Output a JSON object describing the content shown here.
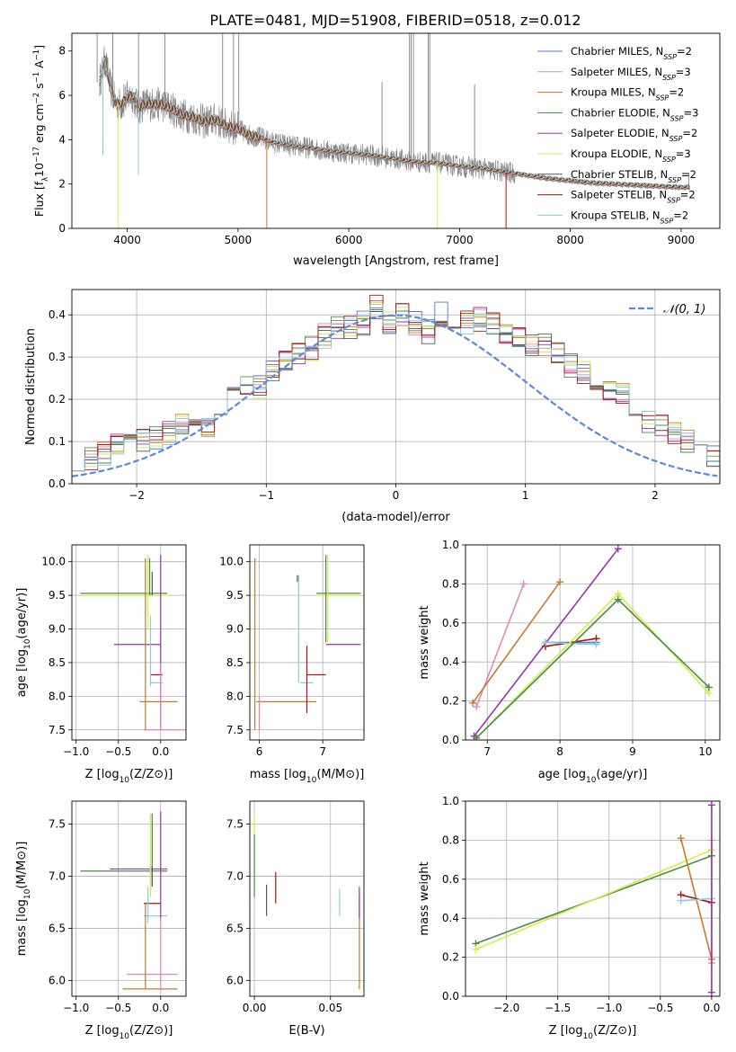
{
  "title": "PLATE=0481, MJD=51908, FIBERID=0518, z=0.012",
  "colors": {
    "chabrier_miles": "#5577cc",
    "salpeter_miles": "#e088b8",
    "kroupa_miles": "#c87828",
    "chabrier_elodie": "#4a8a4a",
    "salpeter_elodie": "#9933aa",
    "kroupa_elodie": "#d4ee44",
    "chabrier_stelib": "#555555",
    "salpeter_stelib": "#aa1111",
    "kroupa_stelib": "#88ccdd",
    "data": "#808080",
    "gauss": "#5b8bd8"
  },
  "chart_data": [
    {
      "id": "spectrum",
      "type": "line",
      "xlabel": "wavelength [Angstrom, rest frame]",
      "ylabel_parts": {
        "main": "Flux [f",
        "sub1": "λ",
        "mid": "10",
        "sup1": "−17",
        "mid2": " erg cm",
        "sup2": "−2",
        "mid3": " s",
        "sup3": "−1",
        "mid4": " A",
        "sup4": "−1",
        "end": "]"
      },
      "xlim": [
        3500,
        9350
      ],
      "ylim": [
        0,
        8.8
      ],
      "xticks": [
        4000,
        5000,
        6000,
        7000,
        8000,
        9000
      ],
      "yticks": [
        0,
        2,
        4,
        6,
        8
      ],
      "legend": [
        {
          "label": "Chabrier MILES, N",
          "sub": "SSP",
          "suffix": "=2",
          "color": "chabrier_miles"
        },
        {
          "label": "Salpeter MILES, N",
          "sub": "SSP",
          "suffix": "=3",
          "color": "salpeter_miles"
        },
        {
          "label": "Kroupa MILES, N",
          "sub": "SSP",
          "suffix": "=2",
          "color": "kroupa_miles"
        },
        {
          "label": "Chabrier ELODIE, N",
          "sub": "SSP",
          "suffix": "=3",
          "color": "chabrier_elodie"
        },
        {
          "label": "Salpeter ELODIE, N",
          "sub": "SSP",
          "suffix": "=2",
          "color": "salpeter_elodie"
        },
        {
          "label": "Kroupa ELODIE, N",
          "sub": "SSP",
          "suffix": "=3",
          "color": "kroupa_elodie"
        },
        {
          "label": "Chabrier STELIB, N",
          "sub": "SSP",
          "suffix": "=2",
          "color": "chabrier_stelib"
        },
        {
          "label": "Salpeter STELIB, N",
          "sub": "SSP",
          "suffix": "=2",
          "color": "salpeter_stelib"
        },
        {
          "label": "Kroupa STELIB, N",
          "sub": "SSP",
          "suffix": "=2",
          "color": "kroupa_stelib"
        }
      ],
      "model_continuum": [
        [
          3750,
          6.6
        ],
        [
          3800,
          7.6
        ],
        [
          3850,
          6.3
        ],
        [
          3900,
          5.6
        ],
        [
          3950,
          5.6
        ],
        [
          4000,
          5.9
        ],
        [
          4050,
          6.0
        ],
        [
          4100,
          5.4
        ],
        [
          4150,
          5.6
        ],
        [
          4200,
          5.6
        ],
        [
          4300,
          5.6
        ],
        [
          4400,
          5.4
        ],
        [
          4500,
          5.1
        ],
        [
          4600,
          5.0
        ],
        [
          4700,
          4.8
        ],
        [
          4800,
          4.9
        ],
        [
          4900,
          4.6
        ],
        [
          5000,
          4.5
        ],
        [
          5100,
          4.2
        ],
        [
          5200,
          4.1
        ],
        [
          5300,
          3.9
        ],
        [
          5400,
          3.8
        ],
        [
          5500,
          3.7
        ],
        [
          5600,
          3.65
        ],
        [
          5700,
          3.6
        ],
        [
          5800,
          3.5
        ],
        [
          5900,
          3.45
        ],
        [
          6000,
          3.4
        ],
        [
          6200,
          3.3
        ],
        [
          6400,
          3.15
        ],
        [
          6600,
          3.0
        ],
        [
          6800,
          2.95
        ],
        [
          7000,
          2.8
        ],
        [
          7200,
          2.7
        ],
        [
          7400,
          2.55
        ],
        [
          7600,
          2.4
        ],
        [
          7800,
          2.25
        ],
        [
          8000,
          2.15
        ],
        [
          8200,
          2.05
        ],
        [
          8400,
          2.0
        ],
        [
          8600,
          1.95
        ],
        [
          8800,
          1.9
        ],
        [
          9000,
          1.85
        ],
        [
          9080,
          1.85
        ]
      ],
      "data_noise_amplitude": 0.5,
      "emission_lines": [
        [
          3728,
          9
        ],
        [
          3869,
          8.8
        ],
        [
          3970,
          6.5
        ],
        [
          4102,
          8.8
        ],
        [
          4340,
          8.8
        ],
        [
          4861,
          8.8
        ],
        [
          4959,
          8.8
        ],
        [
          5007,
          8.8
        ],
        [
          6300,
          6.6
        ],
        [
          6548,
          8.8
        ],
        [
          6563,
          8.8
        ],
        [
          6584,
          8.8
        ],
        [
          6717,
          8.8
        ],
        [
          6731,
          8.8
        ],
        [
          7136,
          6.5
        ],
        [
          9069,
          2.5
        ]
      ],
      "model_drops": [
        [
          3920,
          0,
          "kroupa_elodie"
        ],
        [
          5260,
          0,
          "kroupa_miles"
        ],
        [
          6800,
          0,
          "kroupa_elodie"
        ],
        [
          7420,
          0,
          "salpeter_stelib"
        ],
        [
          3780,
          3.3,
          "kroupa_stelib"
        ],
        [
          4100,
          2.4,
          "kroupa_stelib"
        ]
      ]
    },
    {
      "id": "residual_hist",
      "type": "step",
      "xlabel": "(data-model)/error",
      "ylabel": "Normed distribution",
      "xlim": [
        -2.5,
        2.5
      ],
      "ylim": [
        0,
        0.46
      ],
      "xticks": [
        -2,
        -1,
        0,
        1,
        2
      ],
      "yticks": [
        0,
        0.1,
        0.2,
        0.3,
        0.4
      ],
      "legend": {
        "label": "𝒩(0, 1)",
        "color": "gauss"
      },
      "bin_width": 0.1,
      "bin_start": -2.5,
      "base_values": [
        0.06,
        0.06,
        0.07,
        0.09,
        0.09,
        0.1,
        0.11,
        0.12,
        0.14,
        0.14,
        0.14,
        0.17,
        0.2,
        0.23,
        0.23,
        0.27,
        0.29,
        0.31,
        0.32,
        0.35,
        0.37,
        0.37,
        0.38,
        0.42,
        0.38,
        0.4,
        0.38,
        0.36,
        0.4,
        0.39,
        0.38,
        0.39,
        0.38,
        0.36,
        0.35,
        0.33,
        0.33,
        0.31,
        0.28,
        0.26,
        0.25,
        0.22,
        0.21,
        0.17,
        0.15,
        0.14,
        0.12,
        0.1,
        0.08,
        0.07
      ],
      "series_colors": [
        "chabrier_miles",
        "salpeter_miles",
        "kroupa_miles",
        "chabrier_elodie",
        "salpeter_elodie",
        "kroupa_elodie",
        "chabrier_stelib",
        "salpeter_stelib",
        "kroupa_stelib"
      ]
    },
    {
      "id": "age_vs_Z",
      "type": "errorbar",
      "xlabel": "Z [log10(Z/Z⊙)]",
      "ylabel": "age  [log10(age/yr)]",
      "xlim": [
        -1.05,
        0.3
      ],
      "ylim": [
        7.35,
        10.25
      ],
      "xticks": [
        -1.0,
        -0.5,
        0.0
      ],
      "yticks": [
        7.5,
        8.0,
        8.5,
        9.0,
        9.5,
        10.0
      ],
      "hbars": [
        [
          -0.95,
          0.08,
          9.53,
          "chabrier_elodie"
        ],
        [
          -0.95,
          0.08,
          9.5,
          "kroupa_elodie"
        ],
        [
          -0.55,
          0.0,
          8.77,
          "salpeter_elodie"
        ],
        [
          -0.25,
          0.2,
          7.92,
          "kroupa_miles"
        ],
        [
          -0.12,
          0.02,
          8.32,
          "salpeter_stelib"
        ],
        [
          -0.12,
          0.02,
          8.2,
          "kroupa_stelib"
        ],
        [
          -0.2,
          0.3,
          7.5,
          "salpeter_miles"
        ]
      ],
      "vbars": [
        [
          -0.1,
          9.5,
          9.85,
          "chabrier_stelib"
        ],
        [
          -0.15,
          9.0,
          10.1,
          "kroupa_elodie"
        ],
        [
          -0.13,
          9.5,
          10.05,
          "chabrier_elodie"
        ],
        [
          0.0,
          7.5,
          10.1,
          "salpeter_elodie"
        ],
        [
          -0.18,
          7.5,
          10.05,
          "kroupa_miles"
        ],
        [
          -0.12,
          8.15,
          9.2,
          "kroupa_stelib"
        ],
        [
          0.0,
          7.5,
          8.5,
          "salpeter_miles"
        ]
      ]
    },
    {
      "id": "age_vs_mass",
      "type": "errorbar",
      "xlabel": "mass [log10(M/M⊙)]",
      "ylabel": "",
      "xlim": [
        5.85,
        7.65
      ],
      "ylim": [
        7.35,
        10.25
      ],
      "xticks": [
        6,
        7
      ],
      "yticks": [
        7.5,
        8.0,
        8.5,
        9.0,
        9.5,
        10.0
      ],
      "hbars": [
        [
          6.9,
          7.6,
          9.53,
          "chabrier_elodie"
        ],
        [
          6.9,
          7.6,
          9.5,
          "kroupa_elodie"
        ],
        [
          7.05,
          7.6,
          8.77,
          "salpeter_elodie"
        ],
        [
          5.95,
          6.9,
          7.92,
          "kroupa_miles"
        ],
        [
          6.75,
          7.05,
          8.32,
          "salpeter_stelib"
        ],
        [
          6.65,
          6.85,
          8.2,
          "kroupa_stelib"
        ]
      ],
      "vbars": [
        [
          5.93,
          7.5,
          10.05,
          "kroupa_miles"
        ],
        [
          6.62,
          8.2,
          9.8,
          "kroupa_stelib"
        ],
        [
          6.6,
          9.7,
          9.8,
          "chabrier_stelib"
        ],
        [
          7.05,
          8.8,
          10.1,
          "chabrier_elodie"
        ],
        [
          7.08,
          8.8,
          10.1,
          "kroupa_elodie"
        ],
        [
          6.75,
          7.75,
          8.75,
          "salpeter_stelib"
        ],
        [
          6.0,
          7.5,
          8.0,
          "salpeter_miles"
        ]
      ]
    },
    {
      "id": "massweight_vs_age",
      "type": "line",
      "xlabel": "age  [log10(age/yr)]",
      "ylabel": "mass weight",
      "xlim": [
        6.7,
        10.2
      ],
      "ylim": [
        0,
        1
      ],
      "xticks": [
        7,
        8,
        9,
        10
      ],
      "yticks": [
        0.0,
        0.2,
        0.4,
        0.6,
        0.8,
        1.0
      ],
      "series": [
        {
          "color": "salpeter_miles",
          "x": [
            6.85,
            7.5
          ],
          "y": [
            0.17,
            0.8
          ]
        },
        {
          "color": "kroupa_miles",
          "x": [
            6.8,
            8.0
          ],
          "y": [
            0.19,
            0.81
          ]
        },
        {
          "color": "salpeter_elodie",
          "x": [
            6.82,
            8.8
          ],
          "y": [
            0.02,
            0.98
          ]
        },
        {
          "color": "chabrier_miles",
          "x": [
            7.8,
            8.5
          ],
          "y": [
            0.5,
            0.5
          ]
        },
        {
          "color": "salpeter_stelib",
          "x": [
            7.8,
            8.5
          ],
          "y": [
            0.48,
            0.52
          ]
        },
        {
          "color": "kroupa_stelib",
          "x": [
            7.8,
            8.5
          ],
          "y": [
            0.5,
            0.49
          ]
        },
        {
          "color": "kroupa_elodie",
          "x": [
            6.85,
            8.8,
            10.05
          ],
          "y": [
            0.01,
            0.75,
            0.24
          ]
        },
        {
          "color": "chabrier_elodie",
          "x": [
            6.85,
            8.8,
            10.05
          ],
          "y": [
            0.01,
            0.72,
            0.27
          ]
        }
      ]
    },
    {
      "id": "mass_vs_Z",
      "type": "errorbar",
      "xlabel": "Z [log10(Z/Z⊙)]",
      "ylabel": "mass [log10(M/M⊙)]",
      "xlim": [
        -1.05,
        0.3
      ],
      "ylim": [
        5.85,
        7.72
      ],
      "xticks": [
        -1.0,
        -0.5,
        0.0
      ],
      "yticks": [
        6.0,
        6.5,
        7.0,
        7.5
      ],
      "hbars": [
        [
          -0.95,
          0.08,
          7.05,
          "chabrier_elodie"
        ],
        [
          -0.6,
          0.08,
          7.07,
          "salpeter_elodie"
        ],
        [
          -0.2,
          0.0,
          6.74,
          "salpeter_stelib"
        ],
        [
          -0.2,
          0.08,
          6.62,
          "kroupa_stelib"
        ],
        [
          -0.4,
          0.2,
          6.06,
          "salpeter_miles"
        ],
        [
          -0.45,
          0.2,
          5.92,
          "kroupa_miles"
        ]
      ],
      "vbars": [
        [
          -0.1,
          6.9,
          7.6,
          "chabrier_elodie"
        ],
        [
          -0.12,
          6.8,
          7.6,
          "kroupa_elodie"
        ],
        [
          0.0,
          6.6,
          7.62,
          "salpeter_elodie"
        ],
        [
          -0.18,
          5.92,
          6.75,
          "kroupa_miles"
        ],
        [
          0.0,
          5.92,
          6.6,
          "salpeter_miles"
        ],
        [
          -0.15,
          6.55,
          6.9,
          "kroupa_stelib"
        ],
        [
          -0.1,
          6.9,
          7.1,
          "chabrier_stelib"
        ]
      ]
    },
    {
      "id": "mass_vs_ebv",
      "type": "errorbar",
      "xlabel": "E(B-V)",
      "ylabel": "",
      "xlim": [
        -0.003,
        0.072
      ],
      "ylim": [
        5.85,
        7.72
      ],
      "xticks": [
        0.0,
        0.05
      ],
      "yticks": [
        6.0,
        6.5,
        7.0,
        7.5
      ],
      "hbars": [],
      "vbars": [
        [
          0.0,
          6.9,
          7.6,
          "kroupa_elodie"
        ],
        [
          0.0,
          6.8,
          7.4,
          "chabrier_elodie"
        ],
        [
          0.008,
          6.62,
          6.92,
          "chabrier_stelib"
        ],
        [
          0.014,
          6.74,
          7.04,
          "salpeter_stelib"
        ],
        [
          0.056,
          6.62,
          6.88,
          "kroupa_stelib"
        ],
        [
          0.069,
          5.92,
          6.8,
          "kroupa_miles"
        ],
        [
          0.069,
          6.6,
          6.9,
          "salpeter_elodie"
        ]
      ]
    },
    {
      "id": "massweight_vs_Z",
      "type": "line",
      "xlabel": "Z [log10(Z/Z⊙)]",
      "ylabel": "mass weight",
      "xlim": [
        -2.4,
        0.08
      ],
      "ylim": [
        0,
        1
      ],
      "xticks": [
        -2.0,
        -1.5,
        -1.0,
        -0.5,
        0.0
      ],
      "yticks": [
        0.0,
        0.2,
        0.4,
        0.6,
        0.8,
        1.0
      ],
      "series": [
        {
          "color": "chabrier_elodie",
          "x": [
            -2.3,
            0.0
          ],
          "y": [
            0.27,
            0.72
          ]
        },
        {
          "color": "kroupa_elodie",
          "x": [
            -2.3,
            0.0
          ],
          "y": [
            0.24,
            0.75
          ]
        },
        {
          "color": "kroupa_miles",
          "x": [
            -0.3,
            0.0
          ],
          "y": [
            0.81,
            0.19
          ]
        },
        {
          "color": "salpeter_miles",
          "x": [
            0.0,
            0.0
          ],
          "y": [
            0.8,
            0.17
          ]
        },
        {
          "color": "salpeter_stelib",
          "x": [
            -0.3,
            0.0
          ],
          "y": [
            0.52,
            0.48
          ]
        },
        {
          "color": "kroupa_stelib",
          "x": [
            -0.3,
            0.0
          ],
          "y": [
            0.49,
            0.5
          ]
        },
        {
          "color": "salpeter_elodie",
          "x": [
            0.0,
            0.0
          ],
          "y": [
            0.98,
            0.02
          ]
        }
      ]
    }
  ]
}
